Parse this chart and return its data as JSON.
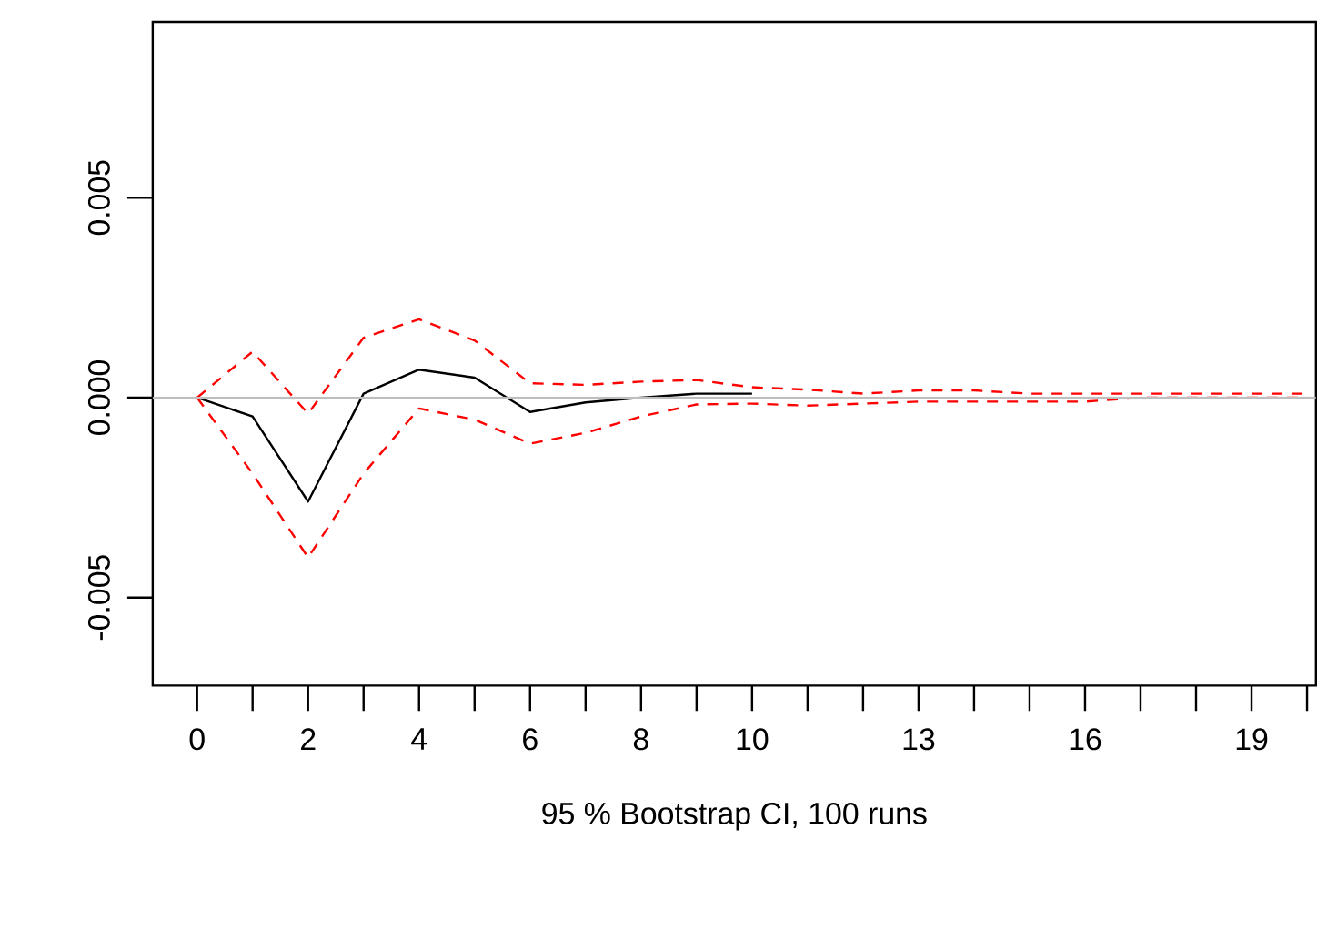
{
  "chart_data": {
    "type": "line",
    "xlabel": "95 % Bootstrap CI,  100 runs",
    "x": [
      0,
      1,
      2,
      3,
      4,
      5,
      6,
      7,
      8,
      9,
      10,
      11,
      12,
      13,
      14,
      15,
      16,
      17,
      18,
      19,
      20
    ],
    "series": [
      {
        "color": "#000000",
        "line_style": "solid",
        "values": [
          0,
          -0.00047,
          -0.0026,
          0.0001,
          0.0007,
          0.0005,
          -0.00036,
          -0.00012,
          0,
          0.0001,
          0.0001,
          null,
          null,
          null,
          null,
          null,
          null,
          null,
          null,
          null,
          null
        ]
      },
      {
        "color": "#ff0000",
        "line_style": "dashed",
        "values": [
          0,
          0.00115,
          -0.0004,
          0.0015,
          0.00196,
          0.00143,
          0.00036,
          0.00032,
          0.0004,
          0.00044,
          0.00026,
          0.0002,
          0.0001,
          0.00018,
          0.00018,
          0.0001,
          0.0001,
          0.0001,
          0.0001,
          0.0001,
          0.0001
        ]
      },
      {
        "color": "#ff0000",
        "line_style": "dashed",
        "values": [
          0,
          -0.0019,
          -0.004,
          -0.0019,
          -0.00027,
          -0.00055,
          -0.00115,
          -0.00088,
          -0.00047,
          -0.00017,
          -0.00015,
          -0.0002,
          -0.00015,
          -0.0001,
          -0.0001,
          -0.0001,
          -0.0001,
          0,
          0,
          0,
          0
        ]
      }
    ],
    "ref_lines": [
      {
        "axis": "y",
        "value": 0,
        "color": "#bebebe"
      }
    ],
    "xlim": [
      -0.8,
      20.16
    ],
    "ylim": [
      -0.0072,
      0.0094
    ],
    "xticks": [
      0,
      {
        "value": 1,
        "label": null
      },
      2,
      {
        "value": 3,
        "label": null
      },
      4,
      {
        "value": 5,
        "label": null
      },
      6,
      {
        "value": 7,
        "label": null
      },
      8,
      {
        "value": 9,
        "label": null
      },
      10,
      {
        "value": 11,
        "label": null
      },
      {
        "value": 12,
        "label": null
      },
      13,
      {
        "value": 14,
        "label": null
      },
      {
        "value": 15,
        "label": null
      },
      16,
      {
        "value": 17,
        "label": null
      },
      {
        "value": 18,
        "label": null
      },
      19,
      {
        "value": 20,
        "label": null
      }
    ],
    "yticks": [
      -0.005,
      {
        "value": 0,
        "label": "0.000"
      },
      0.005
    ],
    "marker": "none"
  }
}
